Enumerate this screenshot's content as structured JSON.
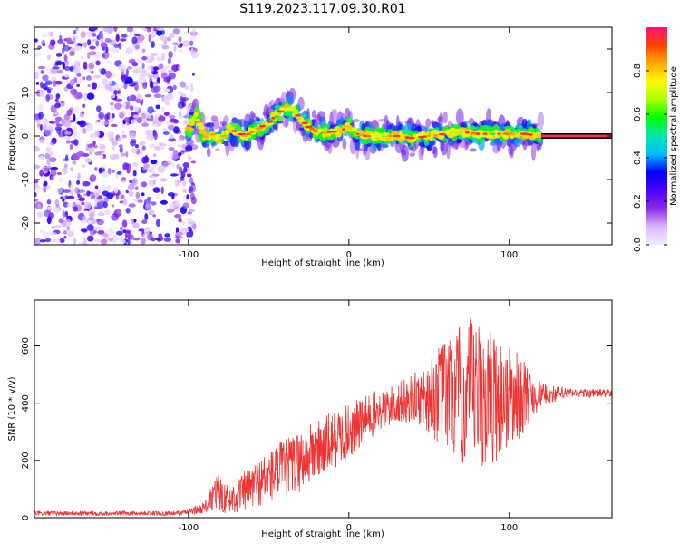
{
  "title": "S119.2023.117.09.30.R01",
  "chart_data": [
    {
      "type": "heatmap",
      "panel": "top",
      "xlabel": "Height of straight line (km)",
      "ylabel": "Frequency (Hz)",
      "xlim": [
        -196,
        164
      ],
      "ylim": [
        -25,
        25
      ],
      "x_ticks": [
        -100,
        0,
        100
      ],
      "x_tick_labels": [
        "-100",
        "0",
        "100"
      ],
      "y_ticks": [
        -20,
        -10,
        0,
        10,
        20
      ],
      "y_tick_labels": [
        "-20",
        "-10",
        "0",
        "10",
        "20"
      ],
      "noise_region_x": [
        -196,
        -100
      ],
      "tone_line_start_x": 120,
      "tone_line_freq": 0,
      "ridge": [
        {
          "x": -100,
          "y": 1.5
        },
        {
          "x": -95,
          "y": 5
        },
        {
          "x": -90,
          "y": -0.5
        },
        {
          "x": -85,
          "y": 0.5
        },
        {
          "x": -80,
          "y": -1
        },
        {
          "x": -75,
          "y": 1.5
        },
        {
          "x": -70,
          "y": 1
        },
        {
          "x": -65,
          "y": 0
        },
        {
          "x": -60,
          "y": 1
        },
        {
          "x": -55,
          "y": 2
        },
        {
          "x": -50,
          "y": 3
        },
        {
          "x": -45,
          "y": 5
        },
        {
          "x": -40,
          "y": 6.5
        },
        {
          "x": -35,
          "y": 6
        },
        {
          "x": -30,
          "y": 4
        },
        {
          "x": -25,
          "y": 2
        },
        {
          "x": -20,
          "y": 1
        },
        {
          "x": -15,
          "y": 0.8
        },
        {
          "x": -10,
          "y": 1
        },
        {
          "x": -5,
          "y": 1
        },
        {
          "x": 0,
          "y": 2.5
        },
        {
          "x": 5,
          "y": 0.5
        },
        {
          "x": 10,
          "y": 0
        },
        {
          "x": 20,
          "y": 0
        },
        {
          "x": 30,
          "y": 0
        },
        {
          "x": 40,
          "y": -0.5
        },
        {
          "x": 50,
          "y": 0
        },
        {
          "x": 60,
          "y": 0.5
        },
        {
          "x": 70,
          "y": 1
        },
        {
          "x": 80,
          "y": 0.5
        },
        {
          "x": 90,
          "y": 0.5
        },
        {
          "x": 100,
          "y": 0.5
        },
        {
          "x": 110,
          "y": 0.5
        },
        {
          "x": 120,
          "y": 0
        }
      ]
    },
    {
      "type": "line",
      "panel": "bottom",
      "xlabel": "Height of straight line (km)",
      "ylabel": "SNR (10 * v/v)",
      "xlim": [
        -196,
        164
      ],
      "ylim": [
        0,
        760
      ],
      "x_ticks": [
        -100,
        0,
        100
      ],
      "x_tick_labels": [
        "-100",
        "0",
        "100"
      ],
      "y_ticks": [
        0,
        200,
        400,
        600
      ],
      "y_tick_labels": [
        "0",
        "200",
        "400",
        "600"
      ],
      "color": "#ee3333",
      "envelope": [
        {
          "x": -196,
          "mean": 15,
          "amp": 8
        },
        {
          "x": -110,
          "mean": 15,
          "amp": 8
        },
        {
          "x": -100,
          "mean": 20,
          "amp": 10
        },
        {
          "x": -90,
          "mean": 35,
          "amp": 20
        },
        {
          "x": -82,
          "mean": 90,
          "amp": 70
        },
        {
          "x": -75,
          "mean": 60,
          "amp": 50
        },
        {
          "x": -60,
          "mean": 110,
          "amp": 80
        },
        {
          "x": -45,
          "mean": 160,
          "amp": 100
        },
        {
          "x": -30,
          "mean": 200,
          "amp": 110
        },
        {
          "x": -15,
          "mean": 250,
          "amp": 110
        },
        {
          "x": 0,
          "mean": 300,
          "amp": 100
        },
        {
          "x": 15,
          "mean": 360,
          "amp": 80
        },
        {
          "x": 30,
          "mean": 400,
          "amp": 70
        },
        {
          "x": 45,
          "mean": 420,
          "amp": 100
        },
        {
          "x": 60,
          "mean": 430,
          "amp": 200
        },
        {
          "x": 75,
          "mean": 420,
          "amp": 280
        },
        {
          "x": 90,
          "mean": 420,
          "amp": 240
        },
        {
          "x": 105,
          "mean": 420,
          "amp": 160
        },
        {
          "x": 120,
          "mean": 430,
          "amp": 40
        },
        {
          "x": 140,
          "mean": 435,
          "amp": 15
        },
        {
          "x": 164,
          "mean": 435,
          "amp": 15
        }
      ]
    }
  ],
  "colorbar": {
    "label": "Normalized spectral amplitude",
    "ticks": [
      0,
      0.2,
      0.4,
      0.6,
      0.8
    ],
    "tick_labels": [
      "0.0",
      "0.2",
      "0.4",
      "0.6",
      "0.8"
    ],
    "range": [
      0,
      1
    ],
    "colors": [
      "#f4ecff",
      "#d9b8ff",
      "#8a2be2",
      "#4b00ff",
      "#0000ff",
      "#00bfff",
      "#00e5b0",
      "#00ff00",
      "#aaff00",
      "#ffff00",
      "#ffaa00",
      "#ff4400",
      "#ff1177"
    ]
  }
}
